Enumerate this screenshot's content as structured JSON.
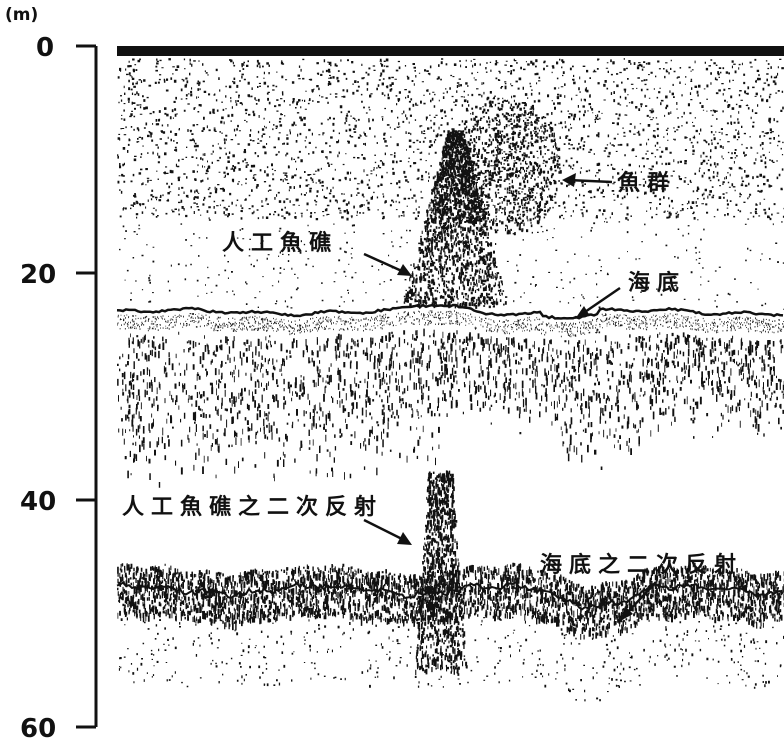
{
  "axis": {
    "unit": "(m)",
    "ticks": [
      {
        "value": 0,
        "label": "0"
      },
      {
        "value": 20,
        "label": "20"
      },
      {
        "value": 40,
        "label": "40"
      },
      {
        "value": 60,
        "label": "60"
      }
    ],
    "range": [
      0,
      60
    ]
  },
  "annotations": {
    "fish_school": "魚群",
    "artificial_reef": "人工魚礁",
    "seabed": "海底",
    "reef_second_reflection": "人工魚礁之二次反射",
    "seabed_second_reflection": "海底之二次反射"
  },
  "colors": {
    "ink": "#111111",
    "background": "#ffffff"
  }
}
